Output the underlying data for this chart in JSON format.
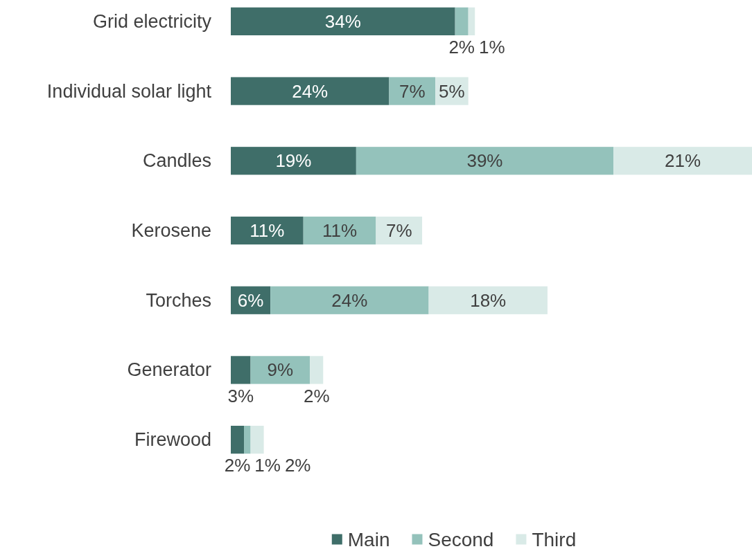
{
  "chart_data": {
    "type": "bar",
    "orientation": "horizontal",
    "stacked": true,
    "categories": [
      "Grid electricity",
      "Individual solar light",
      "Candles",
      "Kerosene",
      "Torches",
      "Generator",
      "Firewood"
    ],
    "series": [
      {
        "name": "Main",
        "color": "#3f6e69",
        "values": [
          34,
          24,
          19,
          11,
          6,
          3,
          2
        ],
        "value_labels": [
          "34%",
          "24%",
          "19%",
          "11%",
          "6%",
          "3%",
          "2%"
        ]
      },
      {
        "name": "Second",
        "color": "#94c2bb",
        "values": [
          2,
          7,
          39,
          11,
          24,
          9,
          1
        ],
        "value_labels": [
          "2%",
          "7%",
          "39%",
          "11%",
          "24%",
          "9%",
          "1%"
        ]
      },
      {
        "name": "Third",
        "color": "#d9eae7",
        "values": [
          1,
          5,
          21,
          7,
          18,
          2,
          2
        ],
        "value_labels": [
          "1%",
          "5%",
          "21%",
          "7%",
          "18%",
          "2%",
          "2%"
        ]
      }
    ],
    "legend": "bottom"
  }
}
